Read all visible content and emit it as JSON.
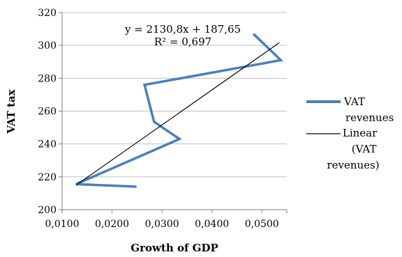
{
  "chart_data": {
    "type": "line",
    "xlabel": "Growth of GDP",
    "ylabel": "VAT tax",
    "xlim": [
      0.01,
      0.055
    ],
    "ylim": [
      200,
      320
    ],
    "x_ticks": [
      "0,0100",
      "0,0200",
      "0,0300",
      "0,0400",
      "0,0500"
    ],
    "y_ticks": [
      "200",
      "220",
      "240",
      "260",
      "280",
      "300",
      "320"
    ],
    "grid": "horizontal",
    "legend_position": "right",
    "series": [
      {
        "name": "VAT revenues",
        "color": "#4a7ebb",
        "x": [
          0.0249,
          0.0128,
          0.0335,
          0.0284,
          0.0265,
          0.0538,
          0.0483
        ],
        "y": [
          214,
          215.5,
          243,
          253.5,
          276,
          291,
          307
        ]
      }
    ],
    "trendline": {
      "name": "Linear (VAT revenues)",
      "color": "#000000",
      "slope": 2130.8,
      "intercept": 187.65,
      "x_range": [
        0.0128,
        0.0535
      ],
      "equation": "y = 2130,8x + 187,65",
      "r_squared": "R² = 0,697"
    },
    "legend": [
      {
        "lines": [
          "VAT",
          "revenues"
        ]
      },
      {
        "lines": [
          "Linear",
          "(VAT",
          "revenues)"
        ]
      }
    ]
  }
}
